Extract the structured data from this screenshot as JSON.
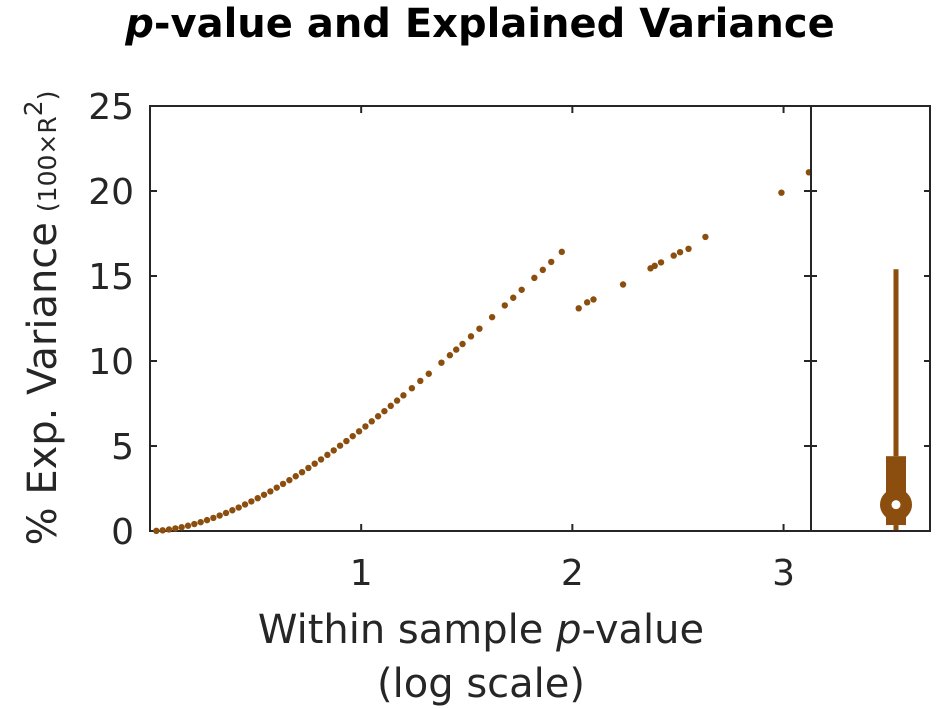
{
  "chart_data": {
    "type": "scatter",
    "title_italic": "p",
    "title_rest": "-value and Explained Variance",
    "xlabel_line1_pre": "Within sample ",
    "xlabel_line1_italic": "p",
    "xlabel_line1_post": "-value",
    "xlabel_line2": "(log scale)",
    "ylabel_main": "% Exp. Variance",
    "ylabel_unit": "(100×R",
    "ylabel_unit_sup": "2",
    "ylabel_unit_close": ")",
    "xlim": [
      0,
      3.13
    ],
    "ylim": [
      0,
      25
    ],
    "xticks": [
      1,
      2,
      3
    ],
    "xtick_labels": [
      "1",
      "2",
      "3"
    ],
    "yticks": [
      0,
      5,
      10,
      15,
      20,
      25
    ],
    "ytick_labels": [
      "0",
      "5",
      "10",
      "15",
      "20",
      "25"
    ],
    "grid": false,
    "marker_color": "#8B4E0E",
    "series": [
      {
        "x": [
          0.03,
          0.06,
          0.09,
          0.12,
          0.15,
          0.18,
          0.21,
          0.24,
          0.27,
          0.3,
          0.33,
          0.36,
          0.39,
          0.42,
          0.45,
          0.48,
          0.51,
          0.54,
          0.57,
          0.6,
          0.63,
          0.66,
          0.69,
          0.72,
          0.75,
          0.78,
          0.81,
          0.84,
          0.87,
          0.9,
          0.93,
          0.96,
          0.99,
          1.02,
          1.05,
          1.08,
          1.11,
          1.14,
          1.17,
          1.2,
          1.24,
          1.28,
          1.32,
          1.38,
          1.42,
          1.45,
          1.48,
          1.52,
          1.56,
          1.62,
          1.68,
          1.72,
          1.76,
          1.82,
          1.86,
          1.9,
          1.95,
          2.03,
          2.07,
          2.1,
          2.24,
          2.37,
          2.39,
          2.42,
          2.48,
          2.51,
          2.55,
          2.63,
          2.99,
          3.12
        ],
        "y": [
          0.01,
          0.04,
          0.09,
          0.15,
          0.22,
          0.31,
          0.41,
          0.52,
          0.64,
          0.77,
          0.91,
          1.06,
          1.22,
          1.38,
          1.56,
          1.74,
          1.93,
          2.13,
          2.33,
          2.55,
          2.77,
          2.99,
          3.22,
          3.46,
          3.71,
          3.96,
          4.21,
          4.48,
          4.74,
          5.02,
          5.29,
          5.58,
          5.86,
          6.15,
          6.45,
          6.75,
          7.05,
          7.36,
          7.67,
          7.98,
          8.4,
          8.83,
          9.25,
          9.9,
          10.34,
          10.67,
          11.0,
          11.45,
          11.9,
          12.58,
          13.27,
          13.72,
          14.19,
          14.89,
          15.36,
          15.83,
          16.42,
          13.1,
          13.45,
          13.62,
          14.5,
          15.45,
          15.6,
          15.8,
          16.2,
          16.4,
          16.6,
          17.3,
          19.9,
          21.1
        ]
      }
    ],
    "marginal_box": {
      "min": 0.05,
      "q1": 0.35,
      "median": 1.55,
      "q3": 4.4,
      "max": 15.4
    }
  }
}
